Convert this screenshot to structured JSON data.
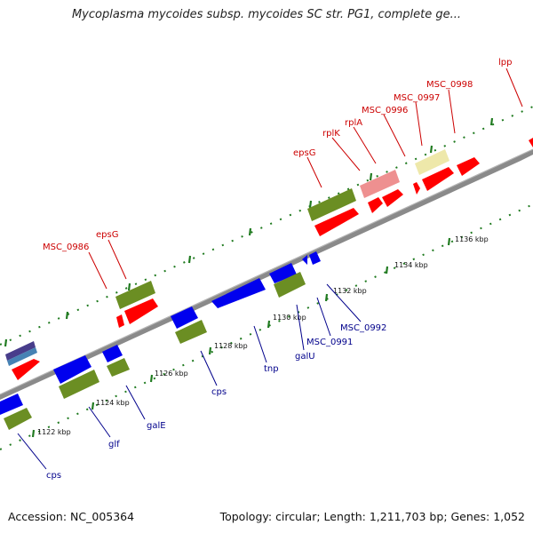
{
  "title": "Mycoplasma mycoides subsp. mycoides SC str. PG1, complete ge...",
  "footer": {
    "accession_prefix": "Accession:",
    "accession": "NC_005364",
    "topology_prefix": "Topology:",
    "topology": "circular",
    "length_prefix": "Length:",
    "length": "1,211,703 bp",
    "genes_prefix": "Genes:",
    "genes": "1,052"
  },
  "colors": {
    "backbone": "#8a8a8a",
    "tick": "#1f7a1f",
    "red": "#ff0000",
    "blue": "#0000ee",
    "olive": "#6b8e23",
    "pink": "#ee9090",
    "khaki": "#eee8aa",
    "navy": "#483d8b",
    "steel": "#4682b4",
    "label_forward": "#cc0000",
    "label_reverse": "#00008b"
  },
  "scale_labels": [
    "1122 kbp",
    "1124 kbp",
    "1126 kbp",
    "1128 kbp",
    "1130 kbp",
    "1132 kbp",
    "1134 kbp",
    "1136 kbp"
  ],
  "forward_labels": [
    "MSC_0986",
    "epsG",
    "epsG",
    "rplK",
    "rplA",
    "MSC_0996",
    "MSC_0997",
    "MSC_0998",
    "lpp"
  ],
  "reverse_labels": [
    "cps",
    "glf",
    "galE",
    "cps",
    "tnp",
    "galU",
    "MSC_0991",
    "MSC_0992"
  ]
}
